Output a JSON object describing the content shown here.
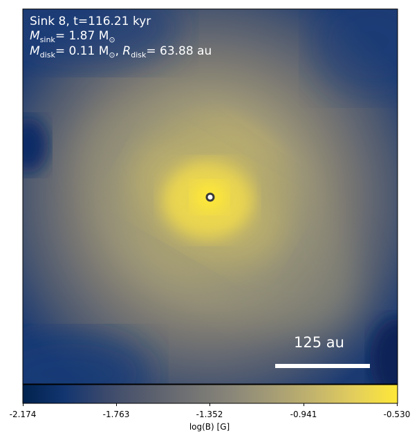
{
  "panel": {
    "sink_line": "Sink 8, t=116.21 kyr",
    "msink": {
      "symbol": "M",
      "subscript": "sink",
      "rest": "= 1.87 M",
      "sun_sub": "⊙"
    },
    "mdisk": {
      "symbol": "M",
      "subscript": "disk",
      "value": "= 0.11 M",
      "sun_sub": "⊙",
      "sep": ",",
      "r_symbol": "R",
      "r_subscript": "disk",
      "r_value": "= 63.88 au"
    },
    "scale_bar_label": "125 au",
    "sink_marker": "sink-particle-marker"
  },
  "colorbar": {
    "label": "log(B) [G]",
    "ticks": [
      "-2.174",
      "-1.763",
      "-1.352",
      "-0.941",
      "-0.530"
    ],
    "colormap": "cividis",
    "colors": [
      "#00224e",
      "#123570",
      "#3b496c",
      "#575d6d",
      "#707173",
      "#8a8779",
      "#a69d75",
      "#c4b56c",
      "#e4cf5b",
      "#fee838"
    ]
  }
}
